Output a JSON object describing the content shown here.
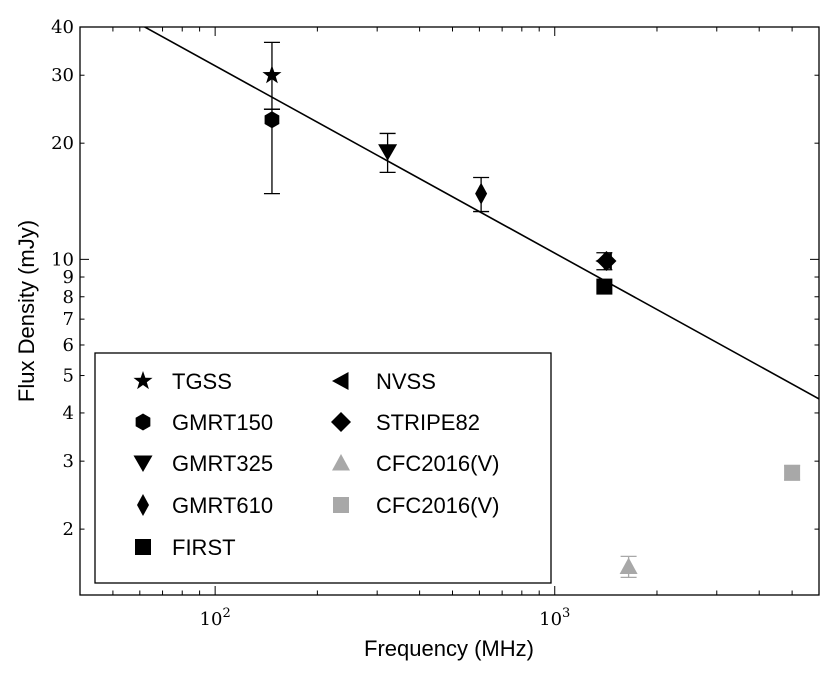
{
  "chart_data": {
    "type": "scatter",
    "title": "",
    "xlabel": "Frequency (MHz)",
    "ylabel": "Flux Density (mJy)",
    "xscale": "log",
    "yscale": "log",
    "xlim": [
      40,
      6000
    ],
    "ylim": [
      1.35,
      40
    ],
    "grid": false,
    "legend_position": "bottom-left",
    "legend_columns": 2,
    "x_ticks": [
      {
        "value": 100,
        "base": "10",
        "exp": "2"
      },
      {
        "value": 1000,
        "base": "10",
        "exp": "3"
      }
    ],
    "y_ticks": [
      {
        "value": 2,
        "label": "2"
      },
      {
        "value": 3,
        "label": "3"
      },
      {
        "value": 4,
        "label": "4"
      },
      {
        "value": 5,
        "label": "5"
      },
      {
        "value": 6,
        "label": "6"
      },
      {
        "value": 7,
        "label": "7"
      },
      {
        "value": 8,
        "label": "8"
      },
      {
        "value": 9,
        "label": "9"
      },
      {
        "value": 10,
        "label": "10"
      },
      {
        "value": 20,
        "label": "20"
      },
      {
        "value": 30,
        "label": "30"
      },
      {
        "value": 40,
        "label": "40"
      }
    ],
    "fit_line": {
      "points": [
        [
          40,
          49.5
        ],
        [
          6000,
          4.35
        ]
      ]
    },
    "series": [
      {
        "name": "TGSS",
        "marker": "star",
        "color": "#000000",
        "points": [
          {
            "x": 147,
            "y": 30.0,
            "yerr_low": 24.5,
            "yerr_high": 36.5
          }
        ]
      },
      {
        "name": "GMRT150",
        "marker": "hexagon",
        "color": "#000000",
        "points": [
          {
            "x": 147,
            "y": 23.0,
            "yerr_low": 14.8,
            "yerr_high": 24.5
          }
        ]
      },
      {
        "name": "GMRT325",
        "marker": "triangle-down",
        "color": "#000000",
        "points": [
          {
            "x": 322,
            "y": 19.0,
            "yerr_low": 16.8,
            "yerr_high": 21.2
          }
        ]
      },
      {
        "name": "GMRT610",
        "marker": "thin-diamond",
        "color": "#000000",
        "points": [
          {
            "x": 607,
            "y": 14.8,
            "yerr_low": 13.3,
            "yerr_high": 16.3
          }
        ]
      },
      {
        "name": "FIRST",
        "marker": "square",
        "color": "#000000",
        "points": [
          {
            "x": 1400,
            "y": 8.5
          }
        ]
      },
      {
        "name": "NVSS",
        "marker": "triangle-left",
        "color": "#000000",
        "points": [
          {
            "x": 1400,
            "y": 9.9,
            "yerr_low": 9.4,
            "yerr_high": 10.4
          }
        ]
      },
      {
        "name": "STRIPE82",
        "marker": "diamond",
        "color": "#000000",
        "points": [
          {
            "x": 1420,
            "y": 9.9
          }
        ]
      },
      {
        "name": "CFC2016(V)",
        "marker": "triangle-up",
        "color": "#a8a8a8",
        "points": [
          {
            "x": 1650,
            "y": 1.6,
            "yerr_low": 1.5,
            "yerr_high": 1.7
          }
        ]
      },
      {
        "name": "CFC2016(V)",
        "marker": "square",
        "color": "#a8a8a8",
        "points": [
          {
            "x": 5000,
            "y": 2.8,
            "yerr_low": 2.68,
            "yerr_high": 2.92
          }
        ]
      }
    ]
  }
}
